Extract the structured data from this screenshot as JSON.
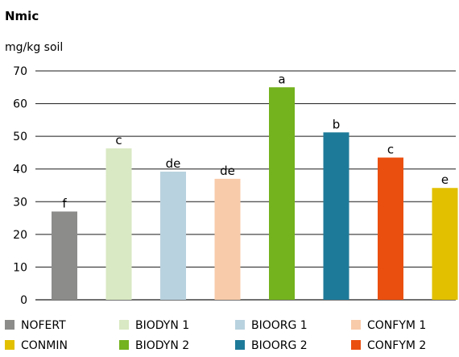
{
  "chart_data": {
    "type": "bar",
    "title": "Nmic",
    "ylabel": "mg/kg soil",
    "xlabel": "",
    "ylim": [
      0,
      70
    ],
    "yticks": [
      0,
      10,
      20,
      30,
      40,
      50,
      60,
      70
    ],
    "grid": "horizontal",
    "legend_position": "bottom",
    "categories": [
      "NOFERT",
      "BIODYN 1",
      "BIOORG 1",
      "CONFYM 1",
      "BIODYN 2",
      "BIOORG 2",
      "CONFYM 2",
      "CONMIN"
    ],
    "values": [
      27,
      46.3,
      39.2,
      37,
      65,
      51.2,
      43.5,
      34.2
    ],
    "significance_letters": [
      "f",
      "c",
      "de",
      "de",
      "a",
      "b",
      "c",
      "e"
    ],
    "colors": [
      "#8c8c8b",
      "#d9e9c3",
      "#b9d2df",
      "#f8cbaa",
      "#74b21e",
      "#1e7a99",
      "#eb4f0f",
      "#e2c000"
    ],
    "legend": [
      {
        "label": "NOFERT",
        "color": "#8c8c8b"
      },
      {
        "label": "BIODYN 1",
        "color": "#d9e9c3"
      },
      {
        "label": "BIOORG 1",
        "color": "#b9d2df"
      },
      {
        "label": "CONFYM 1",
        "color": "#f8cbaa"
      },
      {
        "label": "CONMIN",
        "color": "#e2c000"
      },
      {
        "label": "BIODYN 2",
        "color": "#74b21e"
      },
      {
        "label": "BIOORG 2",
        "color": "#1e7a99"
      },
      {
        "label": "CONFYM 2",
        "color": "#eb4f0f"
      }
    ]
  }
}
